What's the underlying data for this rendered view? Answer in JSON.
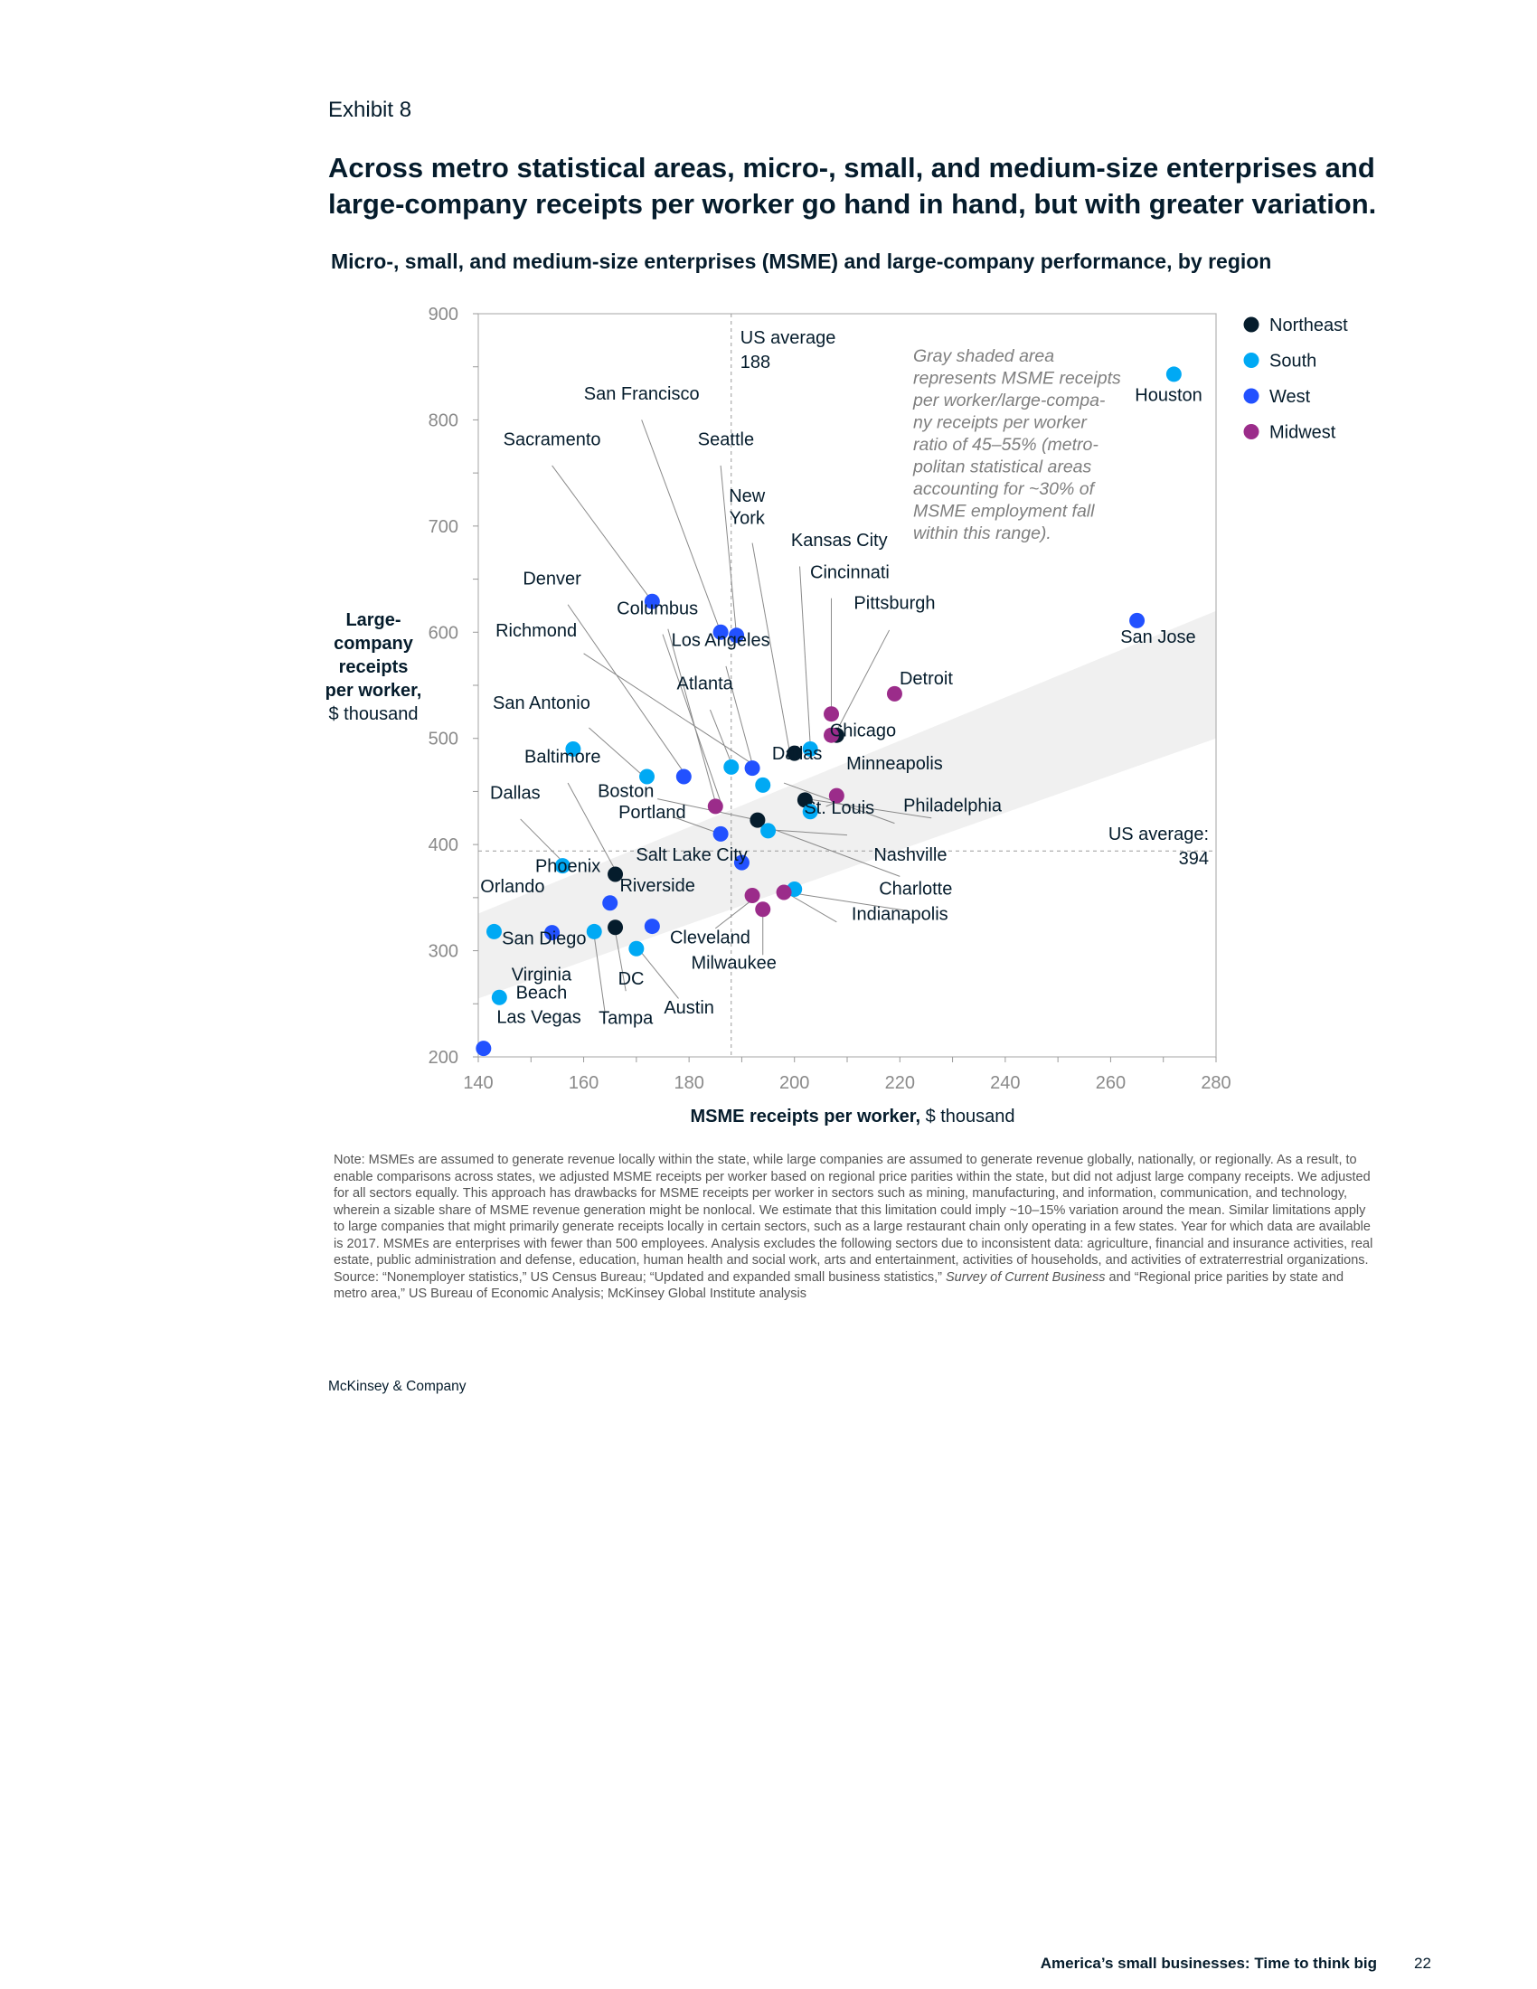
{
  "exhibit_label": "Exhibit 8",
  "headline": "Across metro statistical areas, micro-, small, and medium-size enterprises and large-company receipts per worker go hand in hand, but with greater variation.",
  "chart_data": {
    "type": "scatter",
    "title": "Micro-, small, and medium-size enterprises (MSME) and large-company performance, by region",
    "xlabel_bold": "MSME receipts per worker,",
    "xlabel_unit": "$ thousand",
    "ylabel_lines": [
      "Large-",
      "company",
      "receipts",
      "per worker,"
    ],
    "ylabel_unit": "$ thousand",
    "xlim": [
      140,
      280
    ],
    "ylim": [
      200,
      900
    ],
    "xticks": [
      140,
      160,
      180,
      200,
      220,
      240,
      260,
      280
    ],
    "yticks": [
      200,
      300,
      400,
      500,
      600,
      700,
      800,
      900
    ],
    "grid": false,
    "legend_position": "right",
    "series": [
      {
        "name": "Northeast",
        "color": "#051c2c",
        "points": [
          {
            "label": "New York",
            "x": 200,
            "y": 486
          },
          {
            "label": "Pittsburgh",
            "x": 208,
            "y": 503
          },
          {
            "label": "Philadelphia",
            "x": 202,
            "y": 442
          },
          {
            "label": "Boston",
            "x": 193,
            "y": 423
          },
          {
            "label": "Baltimore",
            "x": 166,
            "y": 372
          },
          {
            "label": "DC",
            "x": 166,
            "y": 322
          }
        ]
      },
      {
        "name": "South",
        "color": "#00a9f4",
        "points": [
          {
            "label": "Houston",
            "x": 272,
            "y": 843
          },
          {
            "label": "Kansas City",
            "x": 203,
            "y": 490
          },
          {
            "label": "San Antonio",
            "x": 158,
            "y": 490
          },
          {
            "label": "Richmond",
            "x": 172,
            "y": 464
          },
          {
            "label": "Atlanta",
            "x": 188,
            "y": 473
          },
          {
            "label": "Dallas",
            "x": 194,
            "y": 456
          },
          {
            "label": "Dallas",
            "x": 156,
            "y": 380
          },
          {
            "label": "Chicago",
            "x": 203,
            "y": 431
          },
          {
            "label": "Nashville",
            "x": 195,
            "y": 413
          },
          {
            "label": "Charlotte",
            "x": 200,
            "y": 358
          },
          {
            "label": "Orlando",
            "x": 143,
            "y": 318
          },
          {
            "label": "Tampa",
            "x": 162,
            "y": 318
          },
          {
            "label": "Austin",
            "x": 170,
            "y": 302
          },
          {
            "label": "Virginia Beach",
            "x": 144,
            "y": 256
          }
        ]
      },
      {
        "name": "West",
        "color": "#2251ff",
        "points": [
          {
            "label": "San Jose",
            "x": 265,
            "y": 611
          },
          {
            "label": "Sacramento",
            "x": 173,
            "y": 629
          },
          {
            "label": "San Francisco",
            "x": 186,
            "y": 600
          },
          {
            "label": "Seattle",
            "x": 189,
            "y": 597
          },
          {
            "label": "Denver",
            "x": 179,
            "y": 464
          },
          {
            "label": "Los Angeles",
            "x": 192,
            "y": 472
          },
          {
            "label": "Portland",
            "x": 186,
            "y": 410
          },
          {
            "label": "Salt Lake City",
            "x": 190,
            "y": 383
          },
          {
            "label": "Phoenix",
            "x": 165,
            "y": 345
          },
          {
            "label": "Riverside",
            "x": 173,
            "y": 323
          },
          {
            "label": "San Diego",
            "x": 154,
            "y": 317
          },
          {
            "label": "Las Vegas",
            "x": 141,
            "y": 208
          }
        ]
      },
      {
        "name": "Midwest",
        "color": "#9b2c8a",
        "points": [
          {
            "label": "Cincinnati",
            "x": 207,
            "y": 523
          },
          {
            "label": "Detroit",
            "x": 219,
            "y": 542
          },
          {
            "label": "Kansas City",
            "x": 207,
            "y": 503
          },
          {
            "label": "Minneapolis",
            "x": 208,
            "y": 446
          },
          {
            "label": "Columbus",
            "x": 185,
            "y": 436
          },
          {
            "label": "Cleveland",
            "x": 192,
            "y": 352
          },
          {
            "label": "Milwaukee",
            "x": 194,
            "y": 339
          },
          {
            "label": "Indianapolis",
            "x": 198,
            "y": 355
          }
        ]
      }
    ],
    "labels": [
      {
        "text": "San Francisco",
        "x": 171,
        "y": 819,
        "color": "#051c2c"
      },
      {
        "text": "Sacramento",
        "x": 154,
        "y": 776,
        "color": "#051c2c"
      },
      {
        "text": "Seattle",
        "x": 187,
        "y": 776,
        "color": "#051c2c"
      },
      {
        "text": "New",
        "x": 191,
        "y": 723,
        "color": "#051c2c"
      },
      {
        "text": "York",
        "x": 191,
        "y": 702,
        "color": "#051c2c"
      },
      {
        "text": "Kansas City",
        "x": 208.5,
        "y": 681,
        "color": "#051c2c"
      },
      {
        "text": "Cincinnati",
        "x": 210.5,
        "y": 651,
        "color": "#051c2c"
      },
      {
        "text": "Pittsburgh",
        "x": 219,
        "y": 622,
        "color": "#051c2c"
      },
      {
        "text": "Denver",
        "x": 154,
        "y": 645,
        "color": "#051c2c"
      },
      {
        "text": "Columbus",
        "x": 174,
        "y": 617,
        "color": "#051c2c"
      },
      {
        "text": "Richmond",
        "x": 151,
        "y": 596,
        "color": "#051c2c"
      },
      {
        "text": "Los Angeles",
        "x": 186,
        "y": 587,
        "color": "#051c2c"
      },
      {
        "text": "Detroit",
        "x": 225,
        "y": 551,
        "color": "#051c2c"
      },
      {
        "text": "Atlanta",
        "x": 183,
        "y": 546,
        "color": "#051c2c"
      },
      {
        "text": "San Antonio",
        "x": 152,
        "y": 528,
        "color": "#051c2c"
      },
      {
        "text": "Chicago",
        "x": 213,
        "y": 502,
        "color": "#051c2c"
      },
      {
        "text": "Baltimore",
        "x": 156,
        "y": 477,
        "color": "#051c2c"
      },
      {
        "text": "Dallas",
        "x": 200.5,
        "y": 480,
        "color": "#051c2c"
      },
      {
        "text": "Minneapolis",
        "x": 219,
        "y": 471,
        "color": "#051c2c"
      },
      {
        "text": "Boston",
        "x": 168,
        "y": 445,
        "color": "#051c2c"
      },
      {
        "text": "Dallas",
        "x": 147,
        "y": 443,
        "color": "#051c2c"
      },
      {
        "text": "Portland",
        "x": 173,
        "y": 425,
        "color": "#051c2c"
      },
      {
        "text": "St. Louis",
        "x": 208.5,
        "y": 429,
        "color": "#051c2c"
      },
      {
        "text": "Philadelphia",
        "x": 230,
        "y": 431,
        "color": "#051c2c"
      },
      {
        "text": "Salt Lake City",
        "x": 180.5,
        "y": 385,
        "color": "#051c2c"
      },
      {
        "text": "Nashville",
        "x": 222,
        "y": 385,
        "color": "#051c2c"
      },
      {
        "text": "Phoenix",
        "x": 157,
        "y": 374,
        "color": "#051c2c"
      },
      {
        "text": "Orlando",
        "x": 146.5,
        "y": 355,
        "color": "#051c2c"
      },
      {
        "text": "Riverside",
        "x": 174,
        "y": 356,
        "color": "#051c2c"
      },
      {
        "text": "Charlotte",
        "x": 223,
        "y": 353,
        "color": "#051c2c"
      },
      {
        "text": "Indianapolis",
        "x": 220,
        "y": 329,
        "color": "#051c2c"
      },
      {
        "text": "Cleveland",
        "x": 184,
        "y": 307,
        "color": "#051c2c"
      },
      {
        "text": "San Diego",
        "x": 152.5,
        "y": 306,
        "color": "#051c2c"
      },
      {
        "text": "Milwaukee",
        "x": 188.5,
        "y": 283,
        "color": "#051c2c"
      },
      {
        "text": "Virginia",
        "x": 152,
        "y": 272,
        "color": "#051c2c"
      },
      {
        "text": "Beach",
        "x": 152,
        "y": 255,
        "color": "#051c2c"
      },
      {
        "text": "DC",
        "x": 169,
        "y": 268,
        "color": "#051c2c"
      },
      {
        "text": "Tampa",
        "x": 168,
        "y": 231,
        "color": "#051c2c"
      },
      {
        "text": "Austin",
        "x": 180,
        "y": 241,
        "color": "#051c2c"
      },
      {
        "text": "Las Vegas",
        "x": 151.5,
        "y": 232,
        "color": "#051c2c"
      },
      {
        "text": "Houston",
        "x": 271,
        "y": 818,
        "color": "#051c2c"
      },
      {
        "text": "San Jose",
        "x": 269,
        "y": 590,
        "color": "#051c2c"
      }
    ],
    "leaders": [
      [
        171,
        800,
        186,
        600
      ],
      [
        154,
        757,
        173,
        629
      ],
      [
        186,
        757,
        189,
        597
      ],
      [
        192,
        684,
        199,
        490
      ],
      [
        201,
        662,
        203,
        494
      ],
      [
        207,
        632,
        207,
        527
      ],
      [
        218,
        602,
        208,
        507
      ],
      [
        157,
        626,
        179,
        468
      ],
      [
        175,
        598,
        186,
        440
      ],
      [
        160,
        580,
        192,
        476
      ],
      [
        187,
        568,
        192,
        476
      ],
      [
        184,
        527,
        188,
        477
      ],
      [
        161,
        510,
        171,
        466
      ],
      [
        176,
        603,
        185,
        440
      ],
      [
        157,
        458,
        166,
        376
      ],
      [
        148,
        424,
        156,
        384
      ],
      [
        177,
        426,
        186,
        410
      ],
      [
        174,
        443,
        193,
        423
      ],
      [
        208,
        440,
        206,
        436
      ],
      [
        219,
        420,
        198,
        458
      ],
      [
        226,
        425,
        201,
        444
      ],
      [
        210,
        409,
        195,
        414
      ],
      [
        220,
        370,
        193,
        420
      ],
      [
        221,
        338,
        200,
        354
      ],
      [
        208,
        327,
        199,
        353
      ],
      [
        185,
        321,
        192,
        348
      ],
      [
        194,
        296,
        194,
        337
      ],
      [
        164,
        344,
        165,
        349
      ],
      [
        168,
        262,
        166,
        318
      ],
      [
        164,
        243,
        162,
        314
      ],
      [
        178,
        255,
        171,
        298
      ]
    ],
    "band": {
      "upper": [
        [
          140,
          335
        ],
        [
          280,
          620
        ]
      ],
      "lower": [
        [
          140,
          255
        ],
        [
          280,
          500
        ]
      ],
      "color": "#f0f0f0"
    },
    "us_avg_x": {
      "value": 188,
      "label_line1": "US average",
      "label_line2": "188"
    },
    "us_avg_y": {
      "value": 394,
      "label_line1": "US average:",
      "label_line2": "394"
    },
    "annotation_lines": [
      "Gray shaded area",
      "represents MSME receipts",
      "per worker/large-compa-",
      "ny receipts per worker",
      "ratio of 45–55% (metro-",
      "politan statistical areas",
      "accounting for ~30% of",
      "MSME employment fall",
      "within this range)."
    ]
  },
  "note_text": "Note: MSMEs are assumed to generate revenue locally within the state, while large companies are assumed to generate revenue globally, nationally, or regionally. As a result, to enable comparisons across states, we adjusted MSME receipts per worker based on regional price parities within the state, but did not adjust large company receipts. We adjusted for all sectors equally. This approach has drawbacks for MSME receipts per worker in sectors such as mining, manufacturing, and information, communication, and technology, wherein a sizable share of MSME revenue generation might be nonlocal. We estimate that this limitation could imply ~10–15% variation around the mean. Similar limitations apply to large companies that might primarily generate receipts locally in certain sectors, such as a large restaurant chain only operating in a few states. Year for which data are available is 2017. MSMEs are enterprises with fewer than 500 employees. Analysis excludes the following sectors due to inconsistent data: agriculture, financial and insurance activities, real estate, public administration and defense, education, human health and social work, arts and entertainment, activities of households, and activities of extraterrestrial organizations.",
  "source_prefix": "Source: “Nonemployer statistics,” US Census Bureau; “Updated and expanded small business statistics,” ",
  "source_italic": "Survey of Current Business",
  "source_suffix": " and “Regional price parities by state and metro area,” US Bureau of Economic Analysis; McKinsey Global Institute analysis",
  "brand": "McKinsey & Company",
  "footer_title": "America’s small businesses: Time to think big",
  "page_number": "22"
}
